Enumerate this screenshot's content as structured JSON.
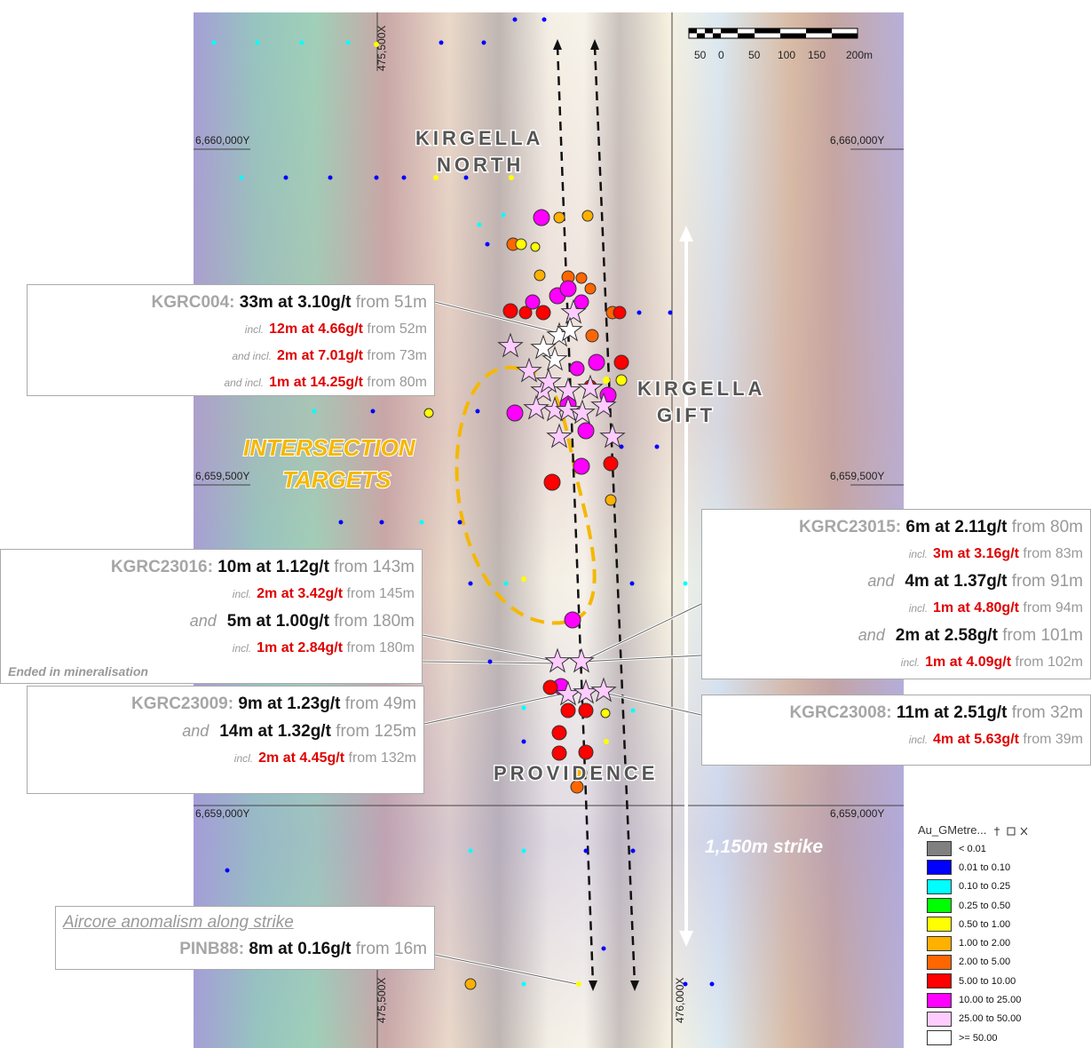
{
  "grid_labels": {
    "x": [
      "475,500X",
      "476,000X"
    ],
    "y": [
      "6,660,000Y",
      "6,659,500Y",
      "6,659,000Y"
    ]
  },
  "scale_bar": [
    "50",
    "0",
    "50",
    "100",
    "150",
    "200m"
  ],
  "area_labels": {
    "kirgella_north": [
      "KIRGELLA",
      "NORTH"
    ],
    "kirgella_gift": [
      "KIRGELLA",
      "GIFT"
    ],
    "providence": "PROVIDENCE",
    "intersection_targets": [
      "INTERSECTION",
      "TARGETS"
    ],
    "strike": "1,150m strike"
  },
  "callouts": [
    {
      "hole": "KGRC004:",
      "lines": [
        {
          "interval": "33m at 3.10g/t",
          "from": "from 51m"
        },
        {
          "prefix": "incl.",
          "interval": "12m at 4.66g/t",
          "from": "from 52m",
          "color": "#e00000"
        },
        {
          "prefix": "and incl.",
          "interval": "2m at 7.01g/t",
          "from": "from 73m",
          "color": "#e00000"
        },
        {
          "prefix": "and incl.",
          "interval": "1m at 14.25g/t",
          "from": "from 80m",
          "color": "#e00000"
        }
      ]
    },
    {
      "hole": "KGRC23016:",
      "lines": [
        {
          "interval": "10m at 1.12g/t",
          "from": "from 143m"
        },
        {
          "prefix": "incl.",
          "interval": "2m at 3.42g/t",
          "from": "from 145m",
          "color": "#e00000"
        },
        {
          "prefix": "and",
          "interval": "5m at 1.00g/t",
          "from": "from 180m"
        },
        {
          "prefix": "incl.",
          "interval": "1m at 2.84g/t",
          "from": "from 180m",
          "color": "#e00000"
        }
      ],
      "note": "Ended in mineralisation"
    },
    {
      "hole": "KGRC23015:",
      "lines": [
        {
          "interval": "6m at 2.11g/t",
          "from": "from 80m"
        },
        {
          "prefix": "incl.",
          "interval": "3m at 3.16g/t",
          "from": "from 83m",
          "color": "#e00000"
        },
        {
          "prefix": "and",
          "interval": "4m at 1.37g/t",
          "from": "from 91m"
        },
        {
          "prefix": "incl.",
          "interval": "1m at 4.80g/t",
          "from": "from 94m",
          "color": "#e00000"
        },
        {
          "prefix": "and",
          "interval": "2m at 2.58g/t",
          "from": "from 101m"
        },
        {
          "prefix": "incl.",
          "interval": "1m at 4.09g/t",
          "from": "from 102m",
          "color": "#e00000"
        }
      ]
    },
    {
      "hole": "KGRC23009:",
      "lines": [
        {
          "interval": "9m at 1.23g/t",
          "from": "from 49m"
        },
        {
          "prefix": "and",
          "interval": "14m at 1.32g/t",
          "from": "from 125m"
        },
        {
          "prefix": "incl.",
          "interval": "2m at 4.45g/t",
          "from": "from 132m",
          "color": "#e00000"
        }
      ]
    },
    {
      "hole": "KGRC23008:",
      "lines": [
        {
          "interval": "11m at 2.51g/t",
          "from": "from 32m"
        },
        {
          "prefix": "incl.",
          "interval": "4m at 5.63g/t",
          "from": "from 39m",
          "color": "#e00000"
        }
      ]
    },
    {
      "caption": "Aircore anomalism along strike",
      "hole": "PINB88:",
      "lines": [
        {
          "interval": "8m at 0.16g/t",
          "from": "from 16m"
        }
      ]
    }
  ],
  "legend": {
    "title": "Au_GMetre...",
    "items": [
      {
        "label": "< 0.01",
        "color": "#808080"
      },
      {
        "label": "0.01 to 0.10",
        "color": "#0000ff"
      },
      {
        "label": "0.10 to 0.25",
        "color": "#00ffff"
      },
      {
        "label": "0.25 to 0.50",
        "color": "#00ff00"
      },
      {
        "label": "0.50 to 1.00",
        "color": "#ffff00"
      },
      {
        "label": "1.00 to 2.00",
        "color": "#ffb000"
      },
      {
        "label": "2.00 to 5.00",
        "color": "#ff6600"
      },
      {
        "label": "5.00 to 10.00",
        "color": "#ff0000"
      },
      {
        "label": "10.00 to 25.00",
        "color": "#ff00ff"
      },
      {
        "label": "25.00 to 50.00",
        "color": "#ffccff"
      },
      {
        "label": ">= 50.00",
        "color": "#ffffff"
      }
    ]
  }
}
